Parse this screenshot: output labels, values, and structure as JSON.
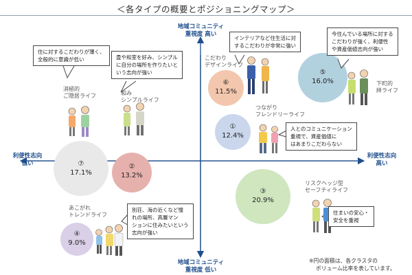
{
  "header": {
    "title": "＜各タイプの概要とポジショニングマップ＞"
  },
  "axes": {
    "top": [
      "地域コミュニティ",
      "重視度 高い"
    ],
    "bottom": [
      "地域コミュニティ",
      "重視度 低い"
    ],
    "left": [
      "利便性志向",
      "低い"
    ],
    "right": [
      "利便性志向",
      "高い"
    ]
  },
  "segments": [
    {
      "id": "shokyo",
      "number": "⑦",
      "pct": "17.1%",
      "label": [
        "消極的",
        "ご隠居ライフ"
      ],
      "color": "#e9e9e9"
    },
    {
      "id": "wa",
      "number": "②",
      "pct": "13.2%",
      "label": [
        "和み",
        "シンプルライフ"
      ],
      "color": "#e6b1ad"
    },
    {
      "id": "kodawari",
      "number": "⑥",
      "pct": "11.5%",
      "label": [
        "こだわり",
        "デザインライフ"
      ],
      "color": "#f3c7ae"
    },
    {
      "id": "tsunagari",
      "number": "①",
      "pct": "12.4%",
      "label": [
        "つながり",
        "フレンドリーライフ"
      ],
      "color": "#c9d6ec"
    },
    {
      "id": "shitamachi",
      "number": "⑤",
      "pct": "16.0%",
      "label": [
        "下町的",
        "絆ライフ"
      ],
      "color": "#b2d1df"
    },
    {
      "id": "risk",
      "number": "③",
      "pct": "20.9%",
      "label": [
        "リスクヘッジ型",
        "セーフティライフ"
      ],
      "color": "#cfe6bf"
    },
    {
      "id": "akogare",
      "number": "④",
      "pct": "9.0%",
      "label": [
        "あこがれ",
        "トレンドライフ"
      ],
      "color": "#d9cfe6"
    }
  ],
  "callouts": {
    "shokyo": [
      "住に対するこだわりが薄く、",
      "全般的に意識が低い"
    ],
    "wa": [
      "畳や和室を好み、シンプル",
      "に自分の場所を作りたいと",
      "いう志向が強い"
    ],
    "kodawari": [
      "インテリアなど住生活に対",
      "するこだわりが非常に強い"
    ],
    "shitamachi": [
      "今住んでいる場所に対する",
      "こだわりが強く、利便性",
      "や資産価値志向が強い"
    ],
    "tsunagari": [
      "人とのコミュニケーション",
      "重視で、資産価値に",
      "はあまりこだわらない"
    ],
    "risk": [
      "住まいの安心・",
      "安全を重視"
    ],
    "akogare": [
      "別荘、海の近くなど憧",
      "れの場所、高層マン",
      "ションに住みたいという",
      "志向が強い"
    ]
  },
  "note": [
    "※円の面積は、各クラスタの",
    "ボリューム比率を表しています。"
  ],
  "colors": {
    "axis": "#1f4e8c"
  }
}
